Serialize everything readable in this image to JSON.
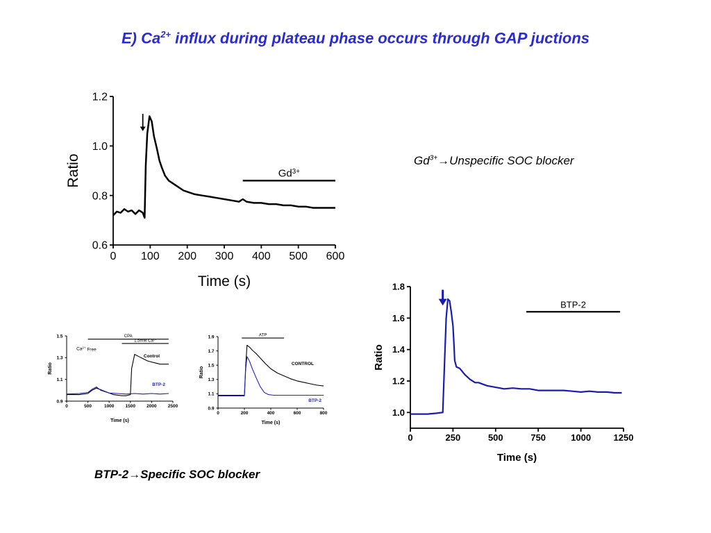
{
  "title": {
    "prefix": "E) Ca",
    "sup": "2+",
    "suffix": " influx  during plateau phase occurs through GAP juctions"
  },
  "notes": {
    "gd": {
      "prefix": "Gd",
      "sup": "3+",
      "arrow": "→",
      "text": "Unspecific SOC blocker"
    },
    "btp": {
      "prefix": "BTP-2",
      "arrow": "→",
      "text": "Specific SOC blocker"
    }
  },
  "chart_data": [
    {
      "type": "line",
      "id": "gd-chart",
      "xlabel": "Time (s)",
      "ylabel": "Ratio",
      "xlim": [
        0,
        600
      ],
      "ylim": [
        0.6,
        1.2
      ],
      "xticks": [
        0,
        100,
        200,
        300,
        400,
        500,
        600
      ],
      "yticks": [
        "0.6",
        "0.8",
        "1.0",
        "1.2"
      ],
      "color": "#000000",
      "annotations": [
        {
          "kind": "bar",
          "label": "Gd",
          "label_sup": "3+",
          "x": [
            350,
            600
          ],
          "y": 0.86
        },
        {
          "kind": "arrow",
          "x": 80,
          "y_from": 1.13,
          "y_to": 1.06
        }
      ],
      "series": [
        {
          "x": [
            0,
            10,
            20,
            30,
            40,
            50,
            60,
            70,
            80,
            85,
            88,
            92,
            98,
            104,
            110,
            118,
            125,
            132,
            140,
            150,
            160,
            170,
            180,
            190,
            200,
            220,
            240,
            260,
            280,
            300,
            320,
            340,
            350,
            360,
            380,
            400,
            420,
            440,
            460,
            480,
            500,
            520,
            540,
            560,
            580,
            600
          ],
          "y": [
            0.72,
            0.735,
            0.73,
            0.745,
            0.735,
            0.74,
            0.725,
            0.74,
            0.73,
            0.71,
            0.92,
            1.05,
            1.12,
            1.1,
            1.04,
            0.99,
            0.94,
            0.91,
            0.88,
            0.86,
            0.85,
            0.84,
            0.83,
            0.82,
            0.815,
            0.805,
            0.8,
            0.795,
            0.79,
            0.785,
            0.78,
            0.775,
            0.785,
            0.775,
            0.77,
            0.77,
            0.765,
            0.765,
            0.76,
            0.76,
            0.755,
            0.755,
            0.75,
            0.75,
            0.75,
            0.75
          ]
        }
      ]
    },
    {
      "type": "line",
      "id": "cpa-chart",
      "xlabel": "Time (s)",
      "ylabel": "Ratio",
      "xlim": [
        0,
        2500
      ],
      "ylim": [
        0.9,
        1.5
      ],
      "xticks": [
        0,
        500,
        1000,
        1500,
        2000,
        2500
      ],
      "yticks": [
        "0.9",
        "1.1",
        "1.3",
        "1.5"
      ],
      "annotations": [
        {
          "kind": "bar",
          "label": "CPA",
          "x": [
            500,
            2400
          ],
          "y": 1.47
        },
        {
          "kind": "bar",
          "label": "1.5mM Ca",
          "label_sup": "2+",
          "x": [
            1300,
            2400
          ],
          "y": 1.43
        },
        {
          "kind": "text",
          "label": "Ca",
          "label_sup": "2+",
          "label_suffix": " Free",
          "x": 230,
          "y": 1.37
        }
      ],
      "series": [
        {
          "name": "Control",
          "color": "#000000",
          "x": [
            0,
            300,
            500,
            600,
            700,
            900,
            1100,
            1300,
            1400,
            1500,
            1530,
            1600,
            1700,
            1800,
            1900,
            2000,
            2100,
            2200,
            2400
          ],
          "y": [
            0.96,
            0.96,
            0.97,
            1.0,
            1.02,
            0.99,
            0.96,
            0.95,
            0.95,
            0.96,
            1.2,
            1.33,
            1.31,
            1.29,
            1.27,
            1.26,
            1.25,
            1.24,
            1.24
          ]
        },
        {
          "name": "BTP-2",
          "color": "#1a1aaa",
          "x": [
            0,
            300,
            500,
            600,
            700,
            800,
            1000,
            1200,
            1400,
            1600,
            1800,
            2000,
            2200,
            2400
          ],
          "y": [
            0.965,
            0.97,
            0.98,
            1.01,
            1.03,
            1.0,
            0.975,
            0.97,
            0.965,
            0.97,
            0.965,
            0.97,
            0.965,
            0.97
          ]
        }
      ]
    },
    {
      "type": "line",
      "id": "atp-chart",
      "xlabel": "Time (s)",
      "ylabel": "Ratio",
      "xlim": [
        0,
        800
      ],
      "ylim": [
        0.9,
        1.9
      ],
      "xticks": [
        0,
        200,
        400,
        600,
        800
      ],
      "yticks": [
        "0.9",
        "1.1",
        "1.3",
        "1.5",
        "1.7",
        "1.9"
      ],
      "annotations": [
        {
          "kind": "bar",
          "label": "ATP",
          "x": [
            180,
            500
          ],
          "y": 1.88
        }
      ],
      "series": [
        {
          "name": "CONTROL",
          "color": "#000000",
          "x": [
            0,
            100,
            190,
            200,
            210,
            220,
            240,
            260,
            290,
            320,
            360,
            400,
            450,
            500,
            550,
            600,
            650,
            700,
            750,
            800
          ],
          "y": [
            1.08,
            1.08,
            1.08,
            1.08,
            1.5,
            1.78,
            1.75,
            1.71,
            1.66,
            1.6,
            1.52,
            1.45,
            1.39,
            1.35,
            1.31,
            1.28,
            1.26,
            1.24,
            1.22,
            1.21
          ]
        },
        {
          "name": "BTP-2",
          "color": "#2222cc",
          "x": [
            0,
            100,
            200,
            210,
            220,
            240,
            260,
            290,
            320,
            350,
            380,
            420,
            500,
            600,
            700,
            800
          ],
          "y": [
            1.07,
            1.07,
            1.07,
            1.45,
            1.62,
            1.55,
            1.45,
            1.32,
            1.2,
            1.12,
            1.09,
            1.08,
            1.08,
            1.08,
            1.08,
            1.08
          ]
        }
      ]
    },
    {
      "type": "line",
      "id": "btp-chart",
      "xlabel": "Time (s)",
      "ylabel": "Ratio",
      "xlim": [
        0,
        1250
      ],
      "ylim": [
        0.9,
        1.8
      ],
      "xticks": [
        0,
        250,
        500,
        750,
        1000,
        1250
      ],
      "yticks": [
        "1.0",
        "1.2",
        "1.4",
        "1.6",
        "1.8"
      ],
      "color": "#1a1ab4",
      "annotations": [
        {
          "kind": "bar",
          "label": "BTP-2",
          "x": [
            680,
            1230
          ],
          "y": 1.64
        },
        {
          "kind": "arrow",
          "x": 190,
          "y_from": 1.78,
          "y_to": 1.68
        }
      ],
      "series": [
        {
          "x": [
            0,
            50,
            100,
            150,
            190,
            200,
            210,
            220,
            230,
            240,
            250,
            255,
            260,
            270,
            290,
            320,
            350,
            380,
            400,
            450,
            500,
            550,
            600,
            650,
            700,
            750,
            800,
            850,
            900,
            950,
            1000,
            1050,
            1100,
            1150,
            1200,
            1240
          ],
          "y": [
            0.99,
            0.99,
            0.99,
            0.995,
            1.0,
            1.3,
            1.6,
            1.72,
            1.71,
            1.64,
            1.55,
            1.45,
            1.33,
            1.29,
            1.28,
            1.24,
            1.21,
            1.19,
            1.19,
            1.17,
            1.16,
            1.15,
            1.155,
            1.15,
            1.15,
            1.14,
            1.14,
            1.14,
            1.14,
            1.135,
            1.13,
            1.135,
            1.13,
            1.13,
            1.125,
            1.125
          ]
        }
      ]
    }
  ]
}
